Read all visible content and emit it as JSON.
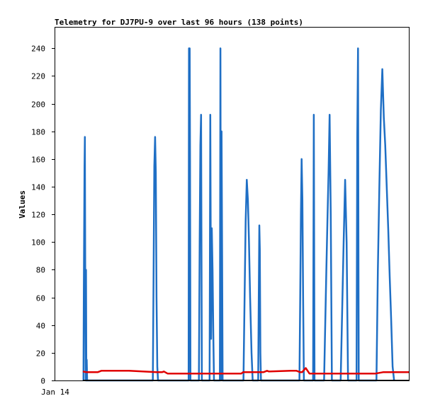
{
  "chart_data": {
    "type": "line",
    "title": "Telemetry for DJ7PU-9 over last 96 hours (138 points)",
    "ylabel": "Values",
    "xlabel": "",
    "x_tick_labels": [
      "Jan 14"
    ],
    "y_ticks": [
      0,
      20,
      40,
      60,
      80,
      100,
      120,
      140,
      160,
      180,
      200,
      220,
      240
    ],
    "ylim": [
      0,
      255
    ],
    "xlim": [
      0,
      96
    ],
    "grid": false,
    "legend": "none",
    "colors": {
      "series_blue": "#1f6fc5",
      "series_red": "#e00000",
      "series_black": "#000000",
      "axis": "#000000"
    },
    "series": [
      {
        "color": "#1f6fc5",
        "x": [
          7.65,
          7.75,
          7.85,
          7.95,
          8.05,
          8.15,
          8.25,
          8.35,
          8.45,
          8.55,
          8.65,
          8.75,
          8.85,
          26.5,
          26.7,
          26.9,
          27.1,
          27.3,
          27.5,
          27.7,
          27.9,
          36.2,
          36.3,
          36.4,
          36.5,
          36.6,
          36.7,
          36.8,
          39.0,
          39.2,
          39.4,
          39.6,
          39.8,
          41.9,
          42.1,
          42.3,
          42.5,
          42.7,
          42.9,
          43.1,
          44.7,
          44.85,
          45.0,
          45.15,
          45.3,
          45.45,
          51.1,
          51.4,
          51.7,
          52.0,
          52.3,
          52.6,
          52.9,
          53.3,
          53.6,
          55.1,
          55.25,
          55.4,
          55.55,
          55.7,
          55.85,
          66.3,
          66.5,
          66.7,
          66.9,
          67.1,
          67.3,
          67.5,
          70.0,
          70.2,
          70.4,
          73.0,
          73.3,
          73.6,
          73.9,
          74.2,
          74.5,
          74.8,
          75.1,
          77.5,
          77.9,
          78.3,
          78.7,
          79.1,
          79.5,
          81.8,
          82.0,
          82.2,
          82.4,
          87.2,
          87.6,
          88.0,
          88.4,
          88.8,
          89.2,
          89.6,
          90.0,
          90.4,
          90.8,
          91.2,
          91.6,
          92.0
        ],
        "values": [
          0,
          65,
          110,
          155,
          176,
          60,
          0,
          80,
          0,
          15,
          0,
          0,
          0,
          0,
          80,
          155,
          176,
          150,
          60,
          10,
          0,
          0,
          240,
          200,
          240,
          160,
          0,
          0,
          0,
          100,
          170,
          192,
          0,
          0,
          192,
          30,
          110,
          80,
          35,
          0,
          0,
          240,
          0,
          180,
          90,
          0,
          0,
          60,
          115,
          145,
          130,
          100,
          60,
          20,
          0,
          0,
          60,
          112,
          95,
          20,
          0,
          0,
          60,
          120,
          160,
          130,
          60,
          0,
          0,
          192,
          0,
          0,
          40,
          80,
          115,
          150,
          192,
          120,
          0,
          0,
          50,
          100,
          145,
          100,
          0,
          0,
          175,
          240,
          0,
          0,
          80,
          140,
          195,
          225,
          190,
          170,
          140,
          110,
          75,
          45,
          10,
          0
        ]
      },
      {
        "color": "#e00000",
        "x": [
          7.5,
          8.5,
          9.5,
          11.5,
          12.5,
          20.0,
          27.5,
          29.0,
          29.5,
          30.5,
          42.0,
          50.5,
          51.0,
          56.5,
          57.5,
          58.0,
          64.0,
          65.5,
          66.5,
          67.0,
          68.0,
          68.5,
          69.0,
          70.0,
          72.0,
          82.0,
          87.0,
          89.0,
          96.0
        ],
        "values": [
          6.5,
          6.0,
          6.0,
          6.0,
          7.0,
          7.0,
          6.0,
          6.0,
          6.5,
          5.0,
          5.0,
          5.0,
          6.0,
          6.0,
          7.0,
          6.5,
          7.0,
          7.0,
          6.0,
          6.0,
          9.0,
          7.0,
          5.0,
          5.0,
          5.0,
          5.0,
          5.0,
          6.0,
          6.0
        ]
      },
      {
        "color": "#000000",
        "x": [
          7.5,
          96.0
        ],
        "values": [
          0,
          0
        ]
      }
    ]
  }
}
